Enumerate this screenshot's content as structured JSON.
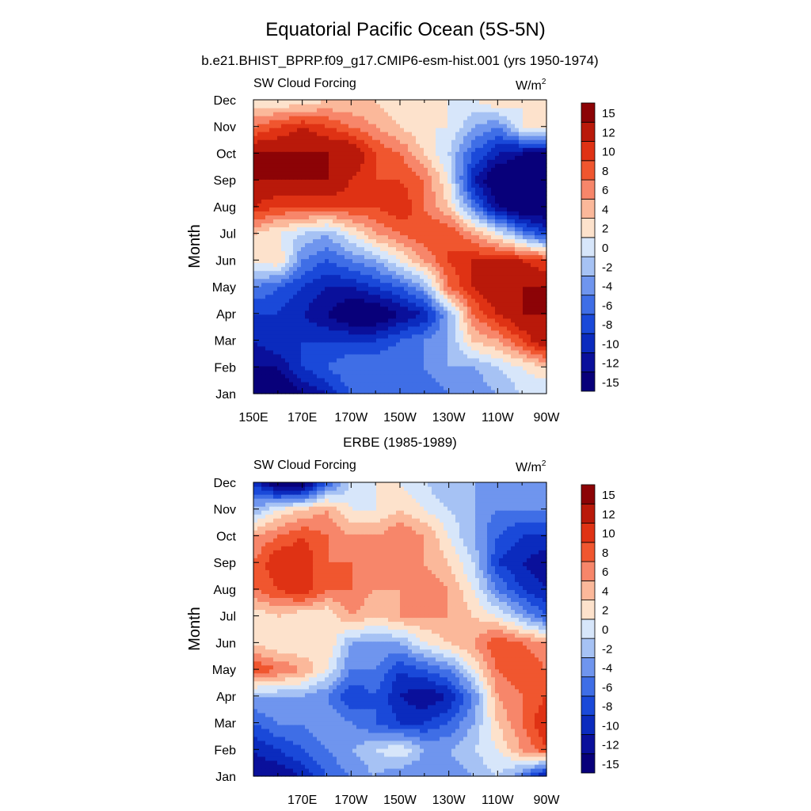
{
  "figure": {
    "title": "Equatorial Pacific Ocean (5S-5N)",
    "subtitle": "b.e21.BHIST_BPRP.f09_g17.CMIP6-esm-hist.001 (yrs 1950-1974)"
  },
  "colors": {
    "levels": [
      "#08007a",
      "#0a109b",
      "#0b2bbe",
      "#1a49d9",
      "#3f6ee6",
      "#6f95ee",
      "#a6c2f4",
      "#d7e6fa",
      "#fde2cc",
      "#fbb89a",
      "#f7866a",
      "#f0562f",
      "#df3214",
      "#b9190a",
      "#8c0306"
    ],
    "level_labels": [
      "-15",
      "-12",
      "-10",
      "-8",
      "-6",
      "-4",
      "-2",
      "0",
      "2",
      "4",
      "6",
      "8",
      "10",
      "12",
      "15"
    ]
  },
  "chart_data": [
    {
      "type": "heatmap",
      "title": "",
      "left_label": "SW Cloud Forcing",
      "right_label_base": "W/m",
      "right_label_sup": "2",
      "ylabel": "Month",
      "xlabel": "",
      "x_tick_labels": [
        "150E",
        "170E",
        "170W",
        "150W",
        "130W",
        "110W",
        "90W"
      ],
      "x_tick_lons": [
        150,
        170,
        190,
        210,
        230,
        250,
        270
      ],
      "y_tick_labels": [
        "Jan",
        "Feb",
        "Mar",
        "Apr",
        "May",
        "Jun",
        "Jul",
        "Aug",
        "Sep",
        "Oct",
        "Nov",
        "Dec"
      ],
      "xlim": [
        150,
        270
      ],
      "ylim": [
        1,
        12
      ],
      "legend": "right",
      "lon": [
        150,
        160,
        170,
        180,
        190,
        200,
        210,
        220,
        230,
        240,
        250,
        260,
        270
      ],
      "z": [
        [
          -15,
          -15,
          -12,
          -10,
          -6,
          -6,
          -6,
          -6,
          -4,
          -4,
          -2,
          0,
          0
        ],
        [
          -12,
          -12,
          -8,
          -6,
          -4,
          -4,
          -4,
          -4,
          -2,
          -2,
          0,
          2,
          4
        ],
        [
          -10,
          -8,
          -8,
          -8,
          -8,
          -8,
          -6,
          -4,
          -2,
          4,
          6,
          10,
          15
        ],
        [
          -8,
          -8,
          -10,
          -12,
          -15,
          -15,
          -12,
          -10,
          -2,
          8,
          12,
          15,
          15
        ],
        [
          -4,
          -6,
          -8,
          -10,
          -10,
          -8,
          -6,
          -2,
          8,
          12,
          15,
          15,
          15
        ],
        [
          2,
          4,
          -4,
          -6,
          -4,
          -2,
          2,
          6,
          10,
          12,
          12,
          12,
          10
        ],
        [
          4,
          2,
          0,
          -2,
          2,
          6,
          8,
          10,
          10,
          6,
          2,
          -4,
          -8
        ],
        [
          12,
          10,
          10,
          10,
          10,
          10,
          12,
          8,
          4,
          -4,
          -12,
          -15,
          -15
        ],
        [
          15,
          15,
          15,
          15,
          12,
          10,
          10,
          8,
          2,
          -10,
          -15,
          -15,
          -15
        ],
        [
          15,
          15,
          15,
          15,
          15,
          10,
          8,
          4,
          0,
          -6,
          -10,
          -12,
          -12
        ],
        [
          8,
          10,
          12,
          10,
          8,
          6,
          4,
          2,
          2,
          -2,
          -4,
          2,
          2
        ],
        [
          2,
          2,
          2,
          4,
          4,
          4,
          2,
          2,
          2,
          2,
          4,
          2,
          2
        ]
      ]
    },
    {
      "type": "heatmap",
      "title": "ERBE (1985-1989)",
      "left_label": "SW Cloud Forcing",
      "right_label_base": "W/m",
      "right_label_sup": "2",
      "ylabel": "Month",
      "xlabel": "",
      "x_tick_labels": [
        "170E",
        "170W",
        "150W",
        "130W",
        "110W",
        "90W"
      ],
      "x_tick_lons": [
        170,
        190,
        210,
        230,
        250,
        270
      ],
      "y_tick_labels": [
        "Jan",
        "Feb",
        "Mar",
        "Apr",
        "May",
        "Jun",
        "Jul",
        "Aug",
        "Sep",
        "Oct",
        "Nov",
        "Dec"
      ],
      "xlim": [
        150,
        270
      ],
      "ylim": [
        1,
        12
      ],
      "legend": "right",
      "lon": [
        150,
        160,
        170,
        180,
        190,
        200,
        210,
        220,
        230,
        240,
        250,
        260,
        270
      ],
      "z": [
        [
          -12,
          -12,
          -10,
          -6,
          -4,
          -2,
          -4,
          -4,
          -4,
          -2,
          0,
          -4,
          -12
        ],
        [
          -10,
          -8,
          -6,
          -4,
          -2,
          0,
          2,
          -2,
          -2,
          0,
          2,
          6,
          10
        ],
        [
          -6,
          -4,
          -4,
          -2,
          -4,
          -6,
          -8,
          -8,
          -6,
          -2,
          4,
          8,
          12
        ],
        [
          -2,
          -2,
          -2,
          -4,
          -8,
          -6,
          -10,
          -12,
          -10,
          -4,
          6,
          8,
          10
        ],
        [
          10,
          8,
          6,
          2,
          -4,
          -4,
          -8,
          -6,
          -4,
          2,
          8,
          10,
          8
        ],
        [
          4,
          2,
          2,
          4,
          -2,
          -2,
          -2,
          2,
          4,
          6,
          10,
          8,
          6
        ],
        [
          2,
          4,
          2,
          2,
          6,
          4,
          6,
          6,
          6,
          4,
          2,
          -2,
          -6
        ],
        [
          8,
          10,
          12,
          8,
          8,
          6,
          6,
          8,
          6,
          2,
          -4,
          -8,
          -10
        ],
        [
          8,
          12,
          12,
          8,
          8,
          8,
          6,
          6,
          4,
          0,
          -8,
          -10,
          -12
        ],
        [
          6,
          8,
          10,
          8,
          6,
          6,
          8,
          6,
          2,
          -2,
          -6,
          -8,
          -8
        ],
        [
          -2,
          2,
          4,
          6,
          2,
          2,
          4,
          2,
          0,
          -2,
          -4,
          -4,
          -4
        ],
        [
          -8,
          -15,
          -15,
          -6,
          0,
          2,
          2,
          0,
          -2,
          -2,
          -4,
          -2,
          -4
        ]
      ]
    }
  ]
}
